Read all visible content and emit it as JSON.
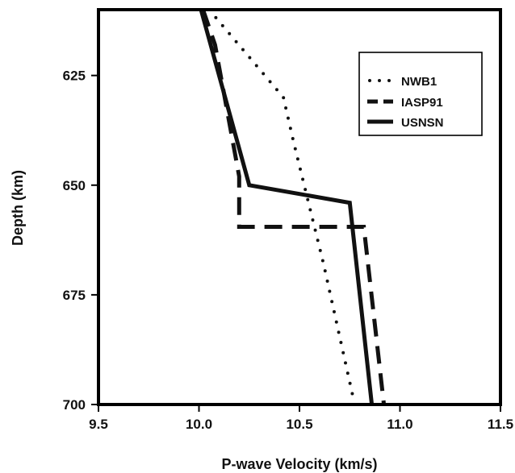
{
  "chart_data": {
    "type": "line",
    "title": "",
    "xlabel": "P-wave Velocity (km/s)",
    "ylabel": "Depth (km)",
    "xlim": [
      9.5,
      11.5
    ],
    "ylim": [
      700,
      610
    ],
    "y_inverted": true,
    "x_ticks": [
      "9.5",
      "10.0",
      "10.5",
      "11.0",
      "11.5"
    ],
    "x_tick_values": [
      9.5,
      10.0,
      10.5,
      11.0,
      11.5
    ],
    "y_ticks": [
      "625",
      "650",
      "675",
      "700"
    ],
    "y_tick_values": [
      625,
      650,
      675,
      700
    ],
    "grid": false,
    "legend_position": "top-right",
    "series": [
      {
        "name": "NWB1",
        "style": "dotted",
        "color": "#111111",
        "x": [
          10.05,
          10.42,
          10.47,
          10.62,
          10.77
        ],
        "y": [
          610,
          630,
          640,
          668,
          699
        ]
      },
      {
        "name": "IASP91",
        "style": "dashed",
        "color": "#111111",
        "x": [
          10.02,
          10.08,
          10.2,
          10.2,
          10.82,
          10.92
        ],
        "y": [
          610,
          618,
          648,
          659.5,
          659.5,
          700
        ]
      },
      {
        "name": "USNSN",
        "style": "solid",
        "color": "#111111",
        "x": [
          10.01,
          10.25,
          10.75,
          10.86
        ],
        "y": [
          610,
          650,
          654,
          700
        ]
      }
    ]
  }
}
